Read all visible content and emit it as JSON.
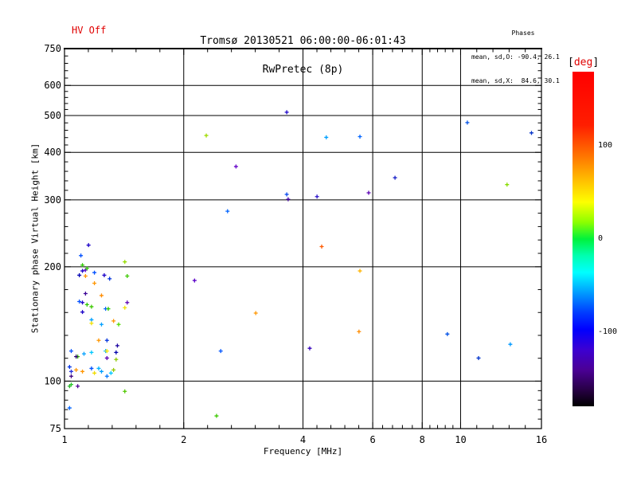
{
  "header": {
    "hv_status": "HV Off",
    "title_line1": "Tromsø 20130521 06:00:00-06:01:43",
    "title_line2": "RwPretec (8p)",
    "phases": {
      "heading": "Phases",
      "line_o": "mean, sd,O: -90.4, 26.1",
      "line_x": "mean, sd,X:  84.6, 30.1"
    }
  },
  "chart_data": {
    "type": "scatter",
    "title": "Tromsø 20130521 06:00:00-06:01:43  RwPretec (8p)",
    "xlabel": "Frequency [MHz]",
    "ylabel": "Stationary phase Virtual Height [km]",
    "x_scale": "log",
    "y_scale": "log",
    "xlim": [
      1,
      16
    ],
    "ylim": [
      75,
      750
    ],
    "x_ticks": [
      1,
      2,
      4,
      6,
      8,
      10,
      16
    ],
    "y_ticks": [
      75,
      100,
      200,
      300,
      400,
      500,
      600,
      750
    ],
    "grid_x": [
      2,
      4,
      6,
      8,
      10
    ],
    "grid_y": [
      100,
      200,
      300,
      400,
      500,
      600
    ],
    "minor_subdivisions": 5,
    "marker": "cross",
    "colorbar": {
      "unit": "deg",
      "ticks": [
        100,
        0,
        -100
      ],
      "range": [
        180,
        -180
      ],
      "stops": [
        {
          "at": 0.0,
          "c": "#ff0000"
        },
        {
          "at": 0.16,
          "c": "#ff1e00"
        },
        {
          "at": 0.25,
          "c": "#ff7300"
        },
        {
          "at": 0.33,
          "c": "#ffc400"
        },
        {
          "at": 0.39,
          "c": "#fdff00"
        },
        {
          "at": 0.45,
          "c": "#8cff00"
        },
        {
          "at": 0.5,
          "c": "#00f23c"
        },
        {
          "at": 0.55,
          "c": "#00ffb0"
        },
        {
          "at": 0.6,
          "c": "#00ffff"
        },
        {
          "at": 0.66,
          "c": "#009dff"
        },
        {
          "at": 0.72,
          "c": "#003cff"
        },
        {
          "at": 0.77,
          "c": "#0000ff"
        },
        {
          "at": 0.83,
          "c": "#3c00d2"
        },
        {
          "at": 0.89,
          "c": "#4b0096"
        },
        {
          "at": 0.95,
          "c": "#280046"
        },
        {
          "at": 1.0,
          "c": "#000000"
        }
      ]
    },
    "points": [
      [
        1.15,
        228,
        "#1a00c8"
      ],
      [
        1.1,
        214,
        "#0050ff"
      ],
      [
        1.42,
        206,
        "#96dc00"
      ],
      [
        1.11,
        202,
        "#2ec800"
      ],
      [
        1.11,
        195,
        "#1a00c8"
      ],
      [
        1.13,
        196,
        "#5a00c8"
      ],
      [
        1.14,
        198,
        "#2ec800"
      ],
      [
        1.19,
        193,
        "#0050ff"
      ],
      [
        1.09,
        190,
        "#0000b4"
      ],
      [
        1.13,
        189,
        "#ff9600"
      ],
      [
        1.26,
        190,
        "#1a00c8"
      ],
      [
        1.3,
        186,
        "#0032dc"
      ],
      [
        1.44,
        189,
        "#3cc800"
      ],
      [
        1.19,
        181,
        "#ff9600"
      ],
      [
        1.13,
        170,
        "#3c0096"
      ],
      [
        1.24,
        168,
        "#ff8c00"
      ],
      [
        1.09,
        162,
        "#0050ff"
      ],
      [
        1.11,
        161,
        "#1a00c8"
      ],
      [
        1.14,
        159,
        "#2ec800"
      ],
      [
        1.44,
        161,
        "#5a00b4"
      ],
      [
        1.17,
        157,
        "#3cc800"
      ],
      [
        1.27,
        155,
        "#0064ff"
      ],
      [
        1.29,
        155,
        "#2ec800"
      ],
      [
        1.42,
        156,
        "#f0e000"
      ],
      [
        1.11,
        152,
        "#1a00c8"
      ],
      [
        1.17,
        145,
        "#00a0ff"
      ],
      [
        1.17,
        142,
        "#f0e000"
      ],
      [
        1.24,
        141,
        "#00a0ff"
      ],
      [
        1.33,
        144,
        "#ff9600"
      ],
      [
        1.37,
        141,
        "#50dc00"
      ],
      [
        1.22,
        128,
        "#ff9600"
      ],
      [
        1.28,
        128,
        "#0032dc"
      ],
      [
        1.36,
        124,
        "#1a00a0"
      ],
      [
        1.04,
        120,
        "#0050ff"
      ],
      [
        1.08,
        116,
        "#2eb400"
      ],
      [
        1.07,
        116,
        "#28006e"
      ],
      [
        1.12,
        118,
        "#00a0ff"
      ],
      [
        1.17,
        119,
        "#00c8ff"
      ],
      [
        1.27,
        120,
        "#00b4ff"
      ],
      [
        1.28,
        120,
        "#ffe600"
      ],
      [
        1.35,
        119,
        "#0000aa"
      ],
      [
        1.28,
        115,
        "#5a00b4"
      ],
      [
        1.35,
        114,
        "#8cc800"
      ],
      [
        1.03,
        109,
        "#0032e6"
      ],
      [
        1.04,
        106,
        "#2832dc"
      ],
      [
        1.07,
        107,
        "#ff9600"
      ],
      [
        1.11,
        106,
        "#ff9600"
      ],
      [
        1.17,
        108,
        "#0050ff"
      ],
      [
        1.19,
        105,
        "#f0dc00"
      ],
      [
        1.22,
        108,
        "#00b4ff"
      ],
      [
        1.24,
        106,
        "#00a0ff"
      ],
      [
        1.28,
        103,
        "#0078ff"
      ],
      [
        1.31,
        105,
        "#00c8ff"
      ],
      [
        1.33,
        107,
        "#96c800"
      ],
      [
        1.04,
        103,
        "#3c0082"
      ],
      [
        1.04,
        98,
        "#2ec82e"
      ],
      [
        1.03,
        97,
        "#28b428"
      ],
      [
        1.08,
        97,
        "#500096"
      ],
      [
        1.42,
        94,
        "#50c800"
      ],
      [
        1.03,
        85,
        "#0064ff"
      ],
      [
        3.64,
        510,
        "#1a00c8"
      ],
      [
        2.28,
        443,
        "#a0dc00"
      ],
      [
        4.58,
        438,
        "#00a0ff"
      ],
      [
        5.57,
        440,
        "#0064ff"
      ],
      [
        10.4,
        479,
        "#0050e6"
      ],
      [
        15.1,
        450,
        "#0032c8"
      ],
      [
        2.71,
        367,
        "#6400c8"
      ],
      [
        6.83,
        343,
        "#1a22c8"
      ],
      [
        13.1,
        329,
        "#88dd00"
      ],
      [
        3.67,
        301,
        "#4400aa"
      ],
      [
        4.34,
        306,
        "#2a11cc"
      ],
      [
        3.64,
        310,
        "#0044ee"
      ],
      [
        2.58,
        280,
        "#0064ff"
      ],
      [
        4.46,
        226,
        "#ff5a00"
      ],
      [
        5.86,
        313,
        "#5a00b4"
      ],
      [
        5.57,
        195,
        "#ffb400"
      ],
      [
        5.54,
        135,
        "#ff8c00"
      ],
      [
        9.26,
        133,
        "#0050e6"
      ],
      [
        13.35,
        125,
        "#0099ff"
      ],
      [
        11.1,
        115,
        "#0033cc"
      ],
      [
        2.13,
        184,
        "#5a00c8"
      ],
      [
        3.04,
        151,
        "#ff9600"
      ],
      [
        2.48,
        120,
        "#0055ff"
      ],
      [
        4.16,
        122,
        "#3300bb"
      ],
      [
        2.42,
        81,
        "#3cc800"
      ]
    ]
  }
}
